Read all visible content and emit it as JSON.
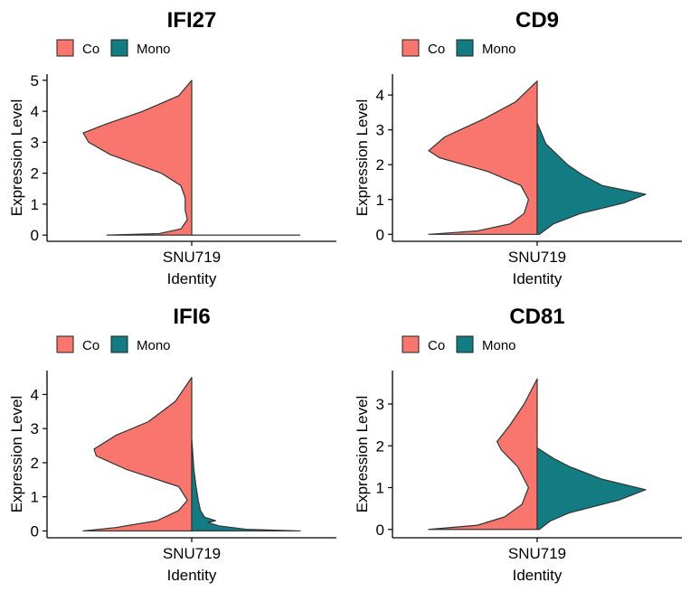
{
  "chart_data": [
    {
      "type": "violin",
      "title": "IFI27",
      "xlabel": "Identity",
      "ylabel": "Expression Level",
      "categories": [
        "SNU719"
      ],
      "ylim": [
        -0.2,
        5.2
      ],
      "yticks": [
        "0",
        "1",
        "2",
        "3",
        "4",
        "5"
      ],
      "legend": [
        "Co",
        "Mono"
      ],
      "legend_position": "top-left",
      "series": [
        {
          "name": "Co",
          "color": "#F8766D",
          "side": "left",
          "max": 5.0,
          "min": 0.0,
          "density": [
            [
              0.0,
              0.78
            ],
            [
              0.05,
              0.3
            ],
            [
              0.2,
              0.1
            ],
            [
              0.5,
              0.04
            ],
            [
              0.8,
              0.06
            ],
            [
              1.2,
              0.06
            ],
            [
              1.6,
              0.1
            ],
            [
              2.0,
              0.28
            ],
            [
              2.6,
              0.75
            ],
            [
              3.0,
              0.95
            ],
            [
              3.3,
              1.0
            ],
            [
              3.6,
              0.78
            ],
            [
              4.0,
              0.45
            ],
            [
              4.5,
              0.12
            ],
            [
              5.0,
              0.0
            ]
          ]
        },
        {
          "name": "Mono",
          "color": "#137C83",
          "side": "right",
          "max": 0.0,
          "min": 0.0,
          "density": [
            [
              -0.005,
              1.0
            ],
            [
              0.005,
              1.0
            ]
          ]
        }
      ]
    },
    {
      "type": "violin",
      "title": "CD9",
      "xlabel": "Identity",
      "ylabel": "Expression Level",
      "categories": [
        "SNU719"
      ],
      "ylim": [
        -0.2,
        4.6
      ],
      "yticks": [
        "0",
        "1",
        "2",
        "3",
        "4"
      ],
      "legend": [
        "Co",
        "Mono"
      ],
      "legend_position": "top-left",
      "series": [
        {
          "name": "Co",
          "color": "#F8766D",
          "side": "left",
          "max": 4.4,
          "min": 0.0,
          "density": [
            [
              0.0,
              1.0
            ],
            [
              0.1,
              0.55
            ],
            [
              0.3,
              0.25
            ],
            [
              0.6,
              0.12
            ],
            [
              1.0,
              0.08
            ],
            [
              1.4,
              0.15
            ],
            [
              1.8,
              0.45
            ],
            [
              2.2,
              0.9
            ],
            [
              2.4,
              1.0
            ],
            [
              2.8,
              0.85
            ],
            [
              3.3,
              0.5
            ],
            [
              3.8,
              0.2
            ],
            [
              4.4,
              0.0
            ]
          ]
        },
        {
          "name": "Mono",
          "color": "#137C83",
          "side": "right",
          "max": 3.2,
          "min": 0.0,
          "density": [
            [
              0.0,
              0.02
            ],
            [
              0.3,
              0.15
            ],
            [
              0.6,
              0.4
            ],
            [
              0.9,
              0.8
            ],
            [
              1.15,
              1.0
            ],
            [
              1.4,
              0.6
            ],
            [
              1.7,
              0.42
            ],
            [
              2.0,
              0.28
            ],
            [
              2.3,
              0.18
            ],
            [
              2.6,
              0.08
            ],
            [
              3.2,
              0.0
            ]
          ]
        }
      ]
    },
    {
      "type": "violin",
      "title": "IFI6",
      "xlabel": "Identity",
      "ylabel": "Expression Level",
      "categories": [
        "SNU719"
      ],
      "ylim": [
        -0.2,
        4.7
      ],
      "yticks": [
        "0",
        "1",
        "2",
        "3",
        "4"
      ],
      "legend": [
        "Co",
        "Mono"
      ],
      "legend_position": "top-left",
      "series": [
        {
          "name": "Co",
          "color": "#F8766D",
          "side": "left",
          "max": 4.5,
          "min": 0.0,
          "density": [
            [
              0.0,
              1.0
            ],
            [
              0.1,
              0.7
            ],
            [
              0.3,
              0.32
            ],
            [
              0.6,
              0.12
            ],
            [
              0.9,
              0.04
            ],
            [
              1.3,
              0.12
            ],
            [
              1.8,
              0.6
            ],
            [
              2.2,
              0.88
            ],
            [
              2.4,
              0.9
            ],
            [
              2.8,
              0.7
            ],
            [
              3.2,
              0.4
            ],
            [
              3.8,
              0.15
            ],
            [
              4.5,
              0.0
            ]
          ]
        },
        {
          "name": "Mono",
          "color": "#137C83",
          "side": "right",
          "max": 2.7,
          "min": 0.0,
          "density": [
            [
              0.0,
              1.0
            ],
            [
              0.05,
              0.5
            ],
            [
              0.15,
              0.25
            ],
            [
              0.25,
              0.15
            ],
            [
              0.3,
              0.22
            ],
            [
              0.4,
              0.12
            ],
            [
              0.6,
              0.08
            ],
            [
              0.9,
              0.06
            ],
            [
              1.3,
              0.04
            ],
            [
              1.8,
              0.02
            ],
            [
              2.7,
              0.0
            ]
          ]
        }
      ]
    },
    {
      "type": "violin",
      "title": "CD81",
      "xlabel": "Identity",
      "ylabel": "Expression Level",
      "categories": [
        "SNU719"
      ],
      "ylim": [
        -0.2,
        3.8
      ],
      "yticks": [
        "0",
        "1",
        "2",
        "3"
      ],
      "legend": [
        "Co",
        "Mono"
      ],
      "legend_position": "top-left",
      "series": [
        {
          "name": "Co",
          "color": "#F8766D",
          "side": "left",
          "max": 3.6,
          "min": 0.0,
          "density": [
            [
              0.0,
              1.0
            ],
            [
              0.1,
              0.55
            ],
            [
              0.3,
              0.3
            ],
            [
              0.6,
              0.14
            ],
            [
              1.0,
              0.08
            ],
            [
              1.5,
              0.18
            ],
            [
              1.9,
              0.33
            ],
            [
              2.1,
              0.37
            ],
            [
              2.5,
              0.25
            ],
            [
              3.0,
              0.12
            ],
            [
              3.6,
              0.0
            ]
          ]
        },
        {
          "name": "Mono",
          "color": "#137C83",
          "side": "right",
          "max": 1.95,
          "min": 0.0,
          "density": [
            [
              0.0,
              0.02
            ],
            [
              0.2,
              0.12
            ],
            [
              0.4,
              0.3
            ],
            [
              0.7,
              0.75
            ],
            [
              0.95,
              1.0
            ],
            [
              1.2,
              0.6
            ],
            [
              1.5,
              0.3
            ],
            [
              1.7,
              0.15
            ],
            [
              1.95,
              0.0
            ]
          ]
        }
      ]
    }
  ]
}
